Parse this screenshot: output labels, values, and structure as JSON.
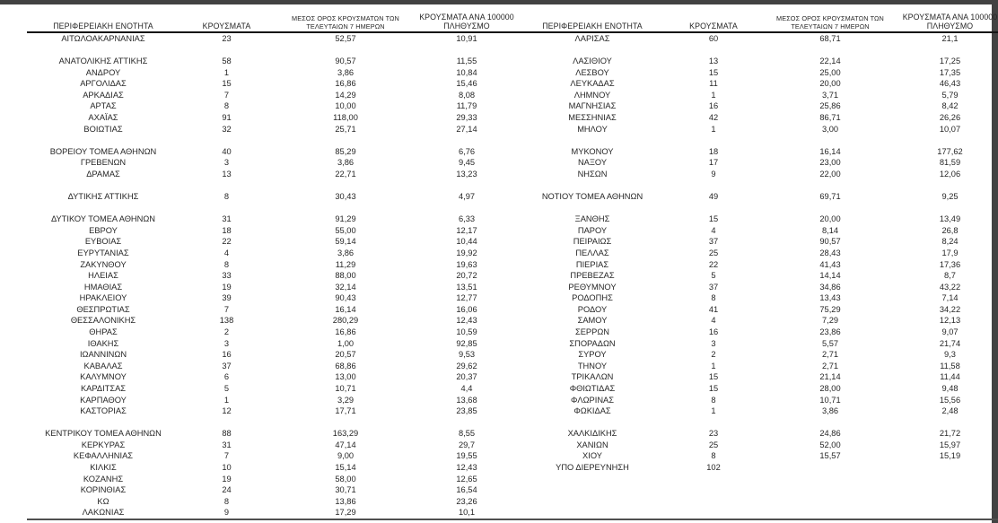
{
  "page": {
    "background": "#ffffff",
    "frame_color": "#424242",
    "text_color": "#262626"
  },
  "table": {
    "headers": {
      "region": "ΠΕΡΙΦΕΡΕΙΑΚΗ ΕΝΟΤΗΤΑ",
      "cases": "ΚΡΟΥΣΜΑΤΑ",
      "avg7_line1": "ΜΕΣΟΣ ΟΡΟΣ ΚΡΟΥΣΜΑΤΩΝ ΤΩΝ",
      "avg7_line2": "ΤΕΛΕΥΤΑΙΩΝ 7 ΗΜΕΡΩΝ",
      "per100k_line1": "ΚΡΟΥΣΜΑΤΑ ΑΝΑ 100000",
      "per100k_line2": "ΠΛΗΘΥΣΜΟ"
    },
    "left_rows": [
      [
        "ΑΙΤΩΛΟΑΚΑΡΝΑΝΙΑΣ",
        "23",
        "52,57",
        "10,91"
      ],
      null,
      [
        "ΑΝΑΤΟΛΙΚΗΣ ΑΤΤΙΚΗΣ",
        "58",
        "90,57",
        "11,55"
      ],
      [
        "ΑΝΔΡΟΥ",
        "1",
        "3,86",
        "10,84"
      ],
      [
        "ΑΡΓΟΛΙΔΑΣ",
        "15",
        "16,86",
        "15,46"
      ],
      [
        "ΑΡΚΑΔΙΑΣ",
        "7",
        "14,29",
        "8,08"
      ],
      [
        "ΑΡΤΑΣ",
        "8",
        "10,00",
        "11,79"
      ],
      [
        "ΑΧΑΪΑΣ",
        "91",
        "118,00",
        "29,33"
      ],
      [
        "ΒΟΙΩΤΙΑΣ",
        "32",
        "25,71",
        "27,14"
      ],
      null,
      [
        "ΒΟΡΕΙΟΥ ΤΟΜΕΑ ΑΘΗΝΩΝ",
        "40",
        "85,29",
        "6,76"
      ],
      [
        "ΓΡΕΒΕΝΩΝ",
        "3",
        "3,86",
        "9,45"
      ],
      [
        "ΔΡΑΜΑΣ",
        "13",
        "22,71",
        "13,23"
      ],
      null,
      [
        "ΔΥΤΙΚΗΣ ΑΤΤΙΚΗΣ",
        "8",
        "30,43",
        "4,97"
      ],
      null,
      [
        "ΔΥΤΙΚΟΥ ΤΟΜΕΑ ΑΘΗΝΩΝ",
        "31",
        "91,29",
        "6,33"
      ],
      [
        "ΕΒΡΟΥ",
        "18",
        "55,00",
        "12,17"
      ],
      [
        "ΕΥΒΟΙΑΣ",
        "22",
        "59,14",
        "10,44"
      ],
      [
        "ΕΥΡΥΤΑΝΙΑΣ",
        "4",
        "3,86",
        "19,92"
      ],
      [
        "ΖΑΚΥΝΘΟΥ",
        "8",
        "11,29",
        "19,63"
      ],
      [
        "ΗΛΕΙΑΣ",
        "33",
        "88,00",
        "20,72"
      ],
      [
        "ΗΜΑΘΙΑΣ",
        "19",
        "32,14",
        "13,51"
      ],
      [
        "ΗΡΑΚΛΕΙΟΥ",
        "39",
        "90,43",
        "12,77"
      ],
      [
        "ΘΕΣΠΡΩΤΙΑΣ",
        "7",
        "16,14",
        "16,06"
      ],
      [
        "ΘΕΣΣΑΛΟΝΙΚΗΣ",
        "138",
        "280,29",
        "12,43"
      ],
      [
        "ΘΗΡΑΣ",
        "2",
        "16,86",
        "10,59"
      ],
      [
        "ΙΘΑΚΗΣ",
        "3",
        "1,00",
        "92,85"
      ],
      [
        "ΙΩΑΝΝΙΝΩΝ",
        "16",
        "20,57",
        "9,53"
      ],
      [
        "ΚΑΒΑΛΑΣ",
        "37",
        "68,86",
        "29,62"
      ],
      [
        "ΚΑΛΥΜΝΟΥ",
        "6",
        "13,00",
        "20,37"
      ],
      [
        "ΚΑΡΔΙΤΣΑΣ",
        "5",
        "10,71",
        "4,4"
      ],
      [
        "ΚΑΡΠΑΘΟΥ",
        "1",
        "3,29",
        "13,68"
      ],
      [
        "ΚΑΣΤΟΡΙΑΣ",
        "12",
        "17,71",
        "23,85"
      ],
      null,
      [
        "ΚΕΝΤΡΙΚΟΥ ΤΟΜΕΑ ΑΘΗΝΩΝ",
        "88",
        "163,29",
        "8,55"
      ],
      [
        "ΚΕΡΚΥΡΑΣ",
        "31",
        "47,14",
        "29,7"
      ],
      [
        "ΚΕΦΑΛΛΗΝΙΑΣ",
        "7",
        "9,00",
        "19,55"
      ],
      [
        "ΚΙΛΚΙΣ",
        "10",
        "15,14",
        "12,43"
      ],
      [
        "ΚΟΖΑΝΗΣ",
        "19",
        "58,00",
        "12,65"
      ],
      [
        "ΚΟΡΙΝΘΙΑΣ",
        "24",
        "30,71",
        "16,54"
      ],
      [
        "ΚΩ",
        "8",
        "13,86",
        "23,26"
      ],
      [
        "ΛΑΚΩΝΙΑΣ",
        "9",
        "17,29",
        "10,1"
      ]
    ],
    "right_rows": [
      [
        "ΛΑΡΙΣΑΣ",
        "60",
        "68,71",
        "21,1"
      ],
      null,
      [
        "ΛΑΣΙΘΙΟΥ",
        "13",
        "22,14",
        "17,25"
      ],
      [
        "ΛΕΣΒΟΥ",
        "15",
        "25,00",
        "17,35"
      ],
      [
        "ΛΕΥΚΑΔΑΣ",
        "11",
        "20,00",
        "46,43"
      ],
      [
        "ΛΗΜΝΟΥ",
        "1",
        "3,71",
        "5,79"
      ],
      [
        "ΜΑΓΝΗΣΙΑΣ",
        "16",
        "25,86",
        "8,42"
      ],
      [
        "ΜΕΣΣΗΝΙΑΣ",
        "42",
        "86,71",
        "26,26"
      ],
      [
        "ΜΗΛΟΥ",
        "1",
        "3,00",
        "10,07"
      ],
      null,
      [
        "ΜΥΚΟΝΟΥ",
        "18",
        "16,14",
        "177,62"
      ],
      [
        "ΝΑΞΟΥ",
        "17",
        "23,00",
        "81,59"
      ],
      [
        "ΝΗΣΩΝ",
        "9",
        "22,00",
        "12,06"
      ],
      null,
      [
        "ΝΟΤΙΟΥ ΤΟΜΕΑ ΑΘΗΝΩΝ",
        "49",
        "69,71",
        "9,25"
      ],
      null,
      [
        "ΞΑΝΘΗΣ",
        "15",
        "20,00",
        "13,49"
      ],
      [
        "ΠΑΡΟΥ",
        "4",
        "8,14",
        "26,8"
      ],
      [
        "ΠΕΙΡΑΙΩΣ",
        "37",
        "90,57",
        "8,24"
      ],
      [
        "ΠΕΛΛΑΣ",
        "25",
        "28,43",
        "17,9"
      ],
      [
        "ΠΙΕΡΙΑΣ",
        "22",
        "41,43",
        "17,36"
      ],
      [
        "ΠΡΕΒΕΖΑΣ",
        "5",
        "14,14",
        "8,7"
      ],
      [
        "ΡΕΘΥΜΝΟΥ",
        "37",
        "34,86",
        "43,22"
      ],
      [
        "ΡΟΔΟΠΗΣ",
        "8",
        "13,43",
        "7,14"
      ],
      [
        "ΡΟΔΟΥ",
        "41",
        "75,29",
        "34,22"
      ],
      [
        "ΣΑΜΟΥ",
        "4",
        "7,29",
        "12,13"
      ],
      [
        "ΣΕΡΡΩΝ",
        "16",
        "23,86",
        "9,07"
      ],
      [
        "ΣΠΟΡΑΔΩΝ",
        "3",
        "5,57",
        "21,74"
      ],
      [
        "ΣΥΡΟΥ",
        "2",
        "2,71",
        "9,3"
      ],
      [
        "ΤΗΝΟΥ",
        "1",
        "2,71",
        "11,58"
      ],
      [
        "ΤΡΙΚΑΛΩΝ",
        "15",
        "21,14",
        "11,44"
      ],
      [
        "ΦΘΙΩΤΙΔΑΣ",
        "15",
        "28,00",
        "9,48"
      ],
      [
        "ΦΛΩΡΙΝΑΣ",
        "8",
        "10,71",
        "15,56"
      ],
      [
        "ΦΩΚΙΔΑΣ",
        "1",
        "3,86",
        "2,48"
      ],
      null,
      [
        "ΧΑΛΚΙΔΙΚΗΣ",
        "23",
        "24,86",
        "21,72"
      ],
      [
        "ΧΑΝΙΩΝ",
        "25",
        "52,00",
        "15,97"
      ],
      [
        "ΧΙΟΥ",
        "8",
        "15,57",
        "15,19"
      ],
      [
        "ΥΠΟ ΔΙΕΡΕΥΝΗΣΗ",
        "102",
        "",
        ""
      ]
    ]
  }
}
